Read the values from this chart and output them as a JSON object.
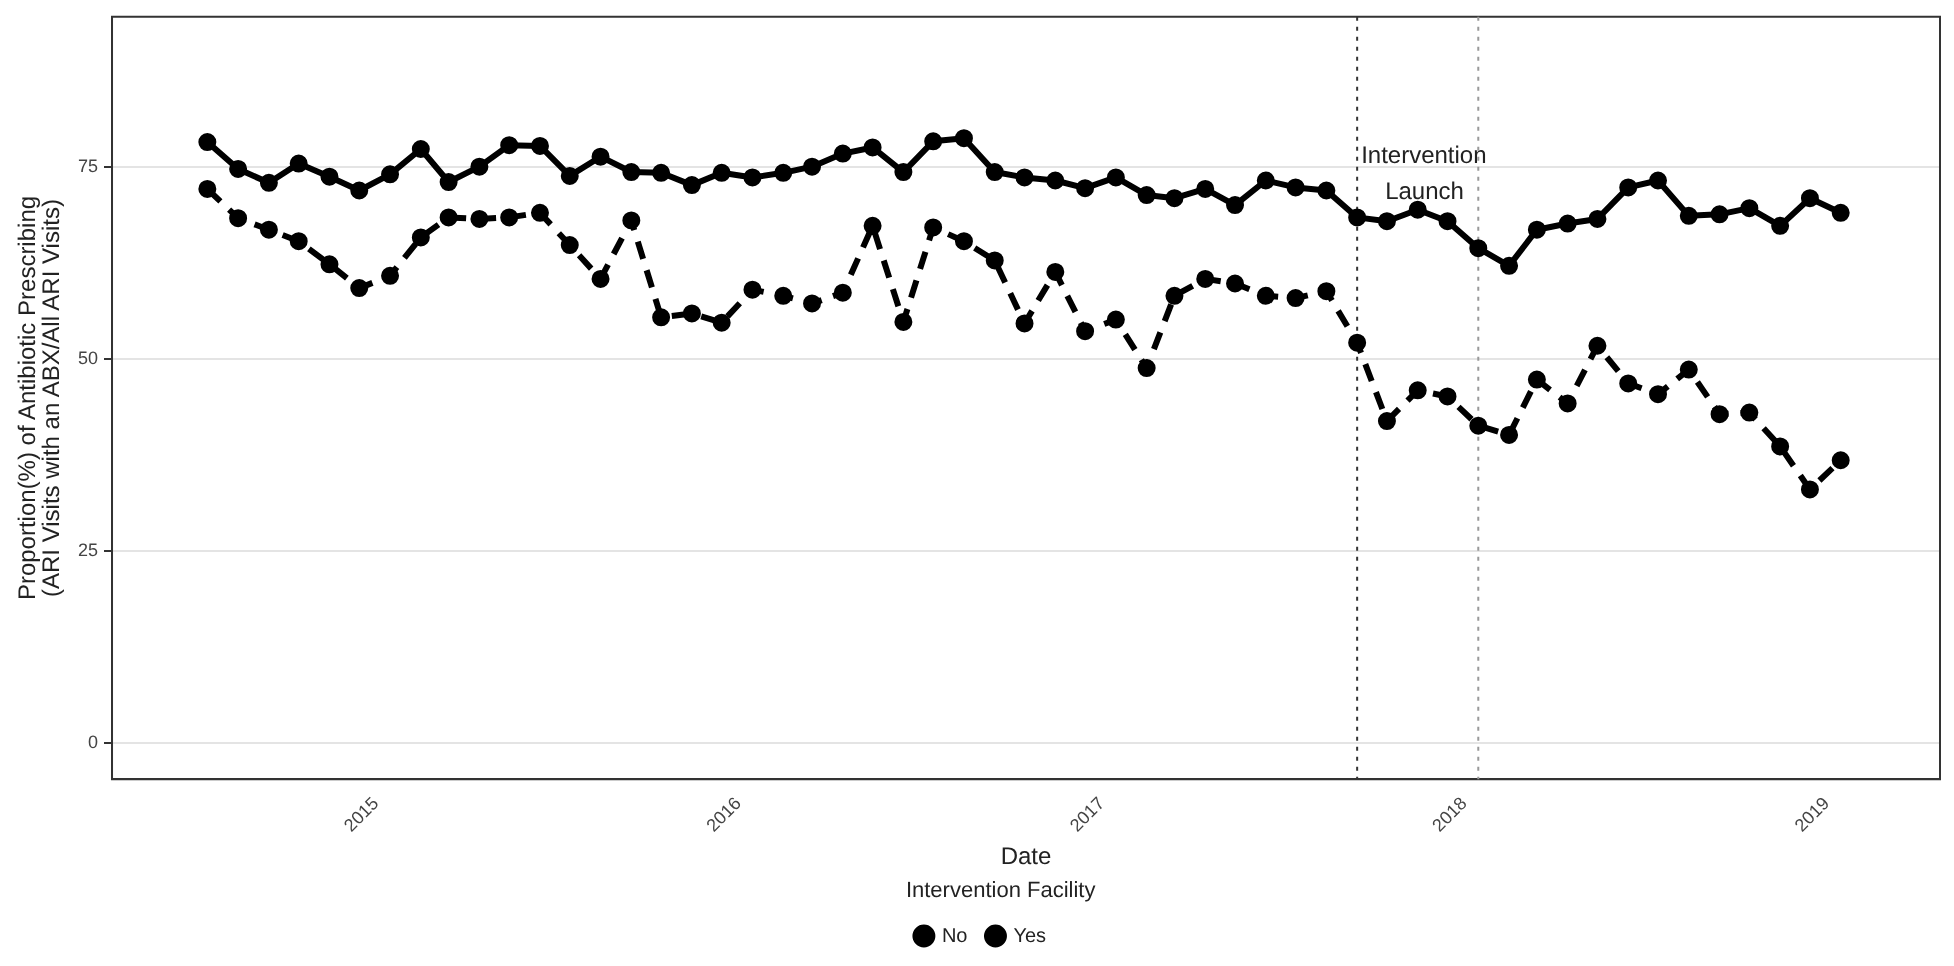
{
  "chart_data": {
    "type": "line",
    "xlabel": "Date",
    "ylabel": "Proportion(%) of Antibiotic Prescribing\n(ARI Visits with an ABX/All ARI Visits)",
    "legend_title": "Intervention Facility",
    "legend": "bottom",
    "grid": "y",
    "marker": "circle",
    "x": [
      "2014-07-15",
      "2014-08-15",
      "2014-09-15",
      "2014-10-15",
      "2014-11-15",
      "2014-12-15",
      "2015-01-15",
      "2015-02-15",
      "2015-03-15",
      "2015-04-15",
      "2015-05-15",
      "2015-06-15",
      "2015-07-15",
      "2015-08-15",
      "2015-09-15",
      "2015-10-15",
      "2015-11-15",
      "2015-12-15",
      "2016-01-15",
      "2016-02-15",
      "2016-03-15",
      "2016-04-15",
      "2016-05-15",
      "2016-06-15",
      "2016-07-15",
      "2016-08-15",
      "2016-09-15",
      "2016-10-15",
      "2016-11-15",
      "2016-12-15",
      "2017-01-15",
      "2017-02-15",
      "2017-03-15",
      "2017-04-15",
      "2017-05-15",
      "2017-06-15",
      "2017-07-15",
      "2017-08-15",
      "2017-09-15",
      "2017-10-15",
      "2017-11-15",
      "2017-12-15",
      "2018-01-15",
      "2018-02-15",
      "2018-03-15",
      "2018-04-15",
      "2018-05-15",
      "2018-06-15",
      "2018-07-15",
      "2018-08-15",
      "2018-09-15",
      "2018-10-15",
      "2018-11-15",
      "2018-12-15",
      "2019-01-15"
    ],
    "series": [
      {
        "name": "No",
        "color": "#000000",
        "line_style": "solid",
        "values": [
          78.2,
          74.7,
          72.9,
          75.4,
          73.7,
          71.9,
          74,
          77.3,
          73,
          75,
          77.8,
          77.7,
          73.8,
          76.3,
          74.3,
          74.2,
          72.6,
          74.2,
          73.6,
          74.2,
          75,
          76.7,
          77.5,
          74.3,
          78.3,
          78.7,
          74.3,
          73.6,
          73.2,
          72.2,
          73.6,
          71.3,
          70.9,
          72.1,
          70,
          73.2,
          72.3,
          71.9,
          68.4,
          67.9,
          69.4,
          67.9,
          64.4,
          62.1,
          66.8,
          67.6,
          68.2,
          72.3,
          73.2,
          68.6,
          68.8,
          69.6,
          67.3,
          70.9,
          69
        ]
      },
      {
        "name": "Yes",
        "color": "#000000",
        "line_style": "dashed",
        "values": [
          72.1,
          68.3,
          66.8,
          65.3,
          62.3,
          59.2,
          60.8,
          65.8,
          68.4,
          68.2,
          68.4,
          69,
          64.8,
          60.4,
          68,
          55.4,
          55.9,
          54.7,
          59,
          58.2,
          57.2,
          58.6,
          67.3,
          54.8,
          67.1,
          65.3,
          62.8,
          54.6,
          61.3,
          53.6,
          55.1,
          48.8,
          58.2,
          60.4,
          59.8,
          58.2,
          57.9,
          58.8,
          52.1,
          41.9,
          45.9,
          45.1,
          41.3,
          40.1,
          47.3,
          44.2,
          51.7,
          46.8,
          45.4,
          48.6,
          42.8,
          43,
          38.6,
          33,
          36.8
        ]
      }
    ],
    "xlim": [
      "2014-04-10",
      "2019-04-25"
    ],
    "xticks": [
      {
        "value": "2015-01-01",
        "label": "2015"
      },
      {
        "value": "2016-01-01",
        "label": "2016"
      },
      {
        "value": "2017-01-01",
        "label": "2017"
      },
      {
        "value": "2018-01-01",
        "label": "2018"
      },
      {
        "value": "2019-01-01",
        "label": "2019"
      }
    ],
    "ylim": [
      -4.7,
      94.5
    ],
    "yticks": [
      0,
      25,
      50,
      75
    ],
    "ref_lines": [
      {
        "axis": "x",
        "value": "2017-09-15",
        "color": "#333333",
        "line_style": "dotted",
        "label": "Intervention Launch"
      },
      {
        "axis": "x",
        "value": "2018-01-15",
        "color": "#999999",
        "line_style": "dotted"
      }
    ]
  }
}
